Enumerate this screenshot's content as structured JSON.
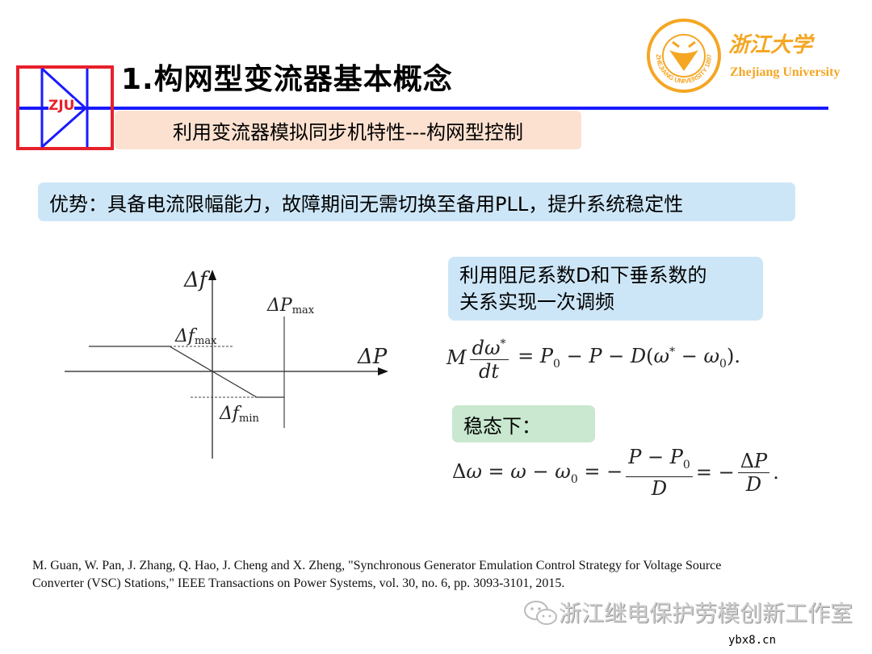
{
  "header": {
    "logo_text": "ZJU",
    "title": "1.构网型变流器基本概念",
    "subtitle": "利用变流器模拟同步机特性---构网型控制",
    "university_cn": "浙江大学",
    "university_en": "Zhejiang University",
    "university_seal_text": "ZHEJIANG UNIVERSITY 1897"
  },
  "advantage": "优势：具备电流限幅能力，故障期间无需切换至备用PLL，提升系统稳定性",
  "diagram": {
    "y_label": "Δf",
    "x_label": "ΔP",
    "fmax_label": "Δf",
    "fmax_sub": "max",
    "fmin_label": "Δf",
    "fmin_sub": "min",
    "pmax_label": "ΔP",
    "pmax_sub": "max"
  },
  "right": {
    "note_line1": "利用阻尼系数D和下垂系数的",
    "note_line2": "关系实现一次调频",
    "steady_label": "稳态下："
  },
  "reference": {
    "line1": "M. Guan, W. Pan, J. Zhang, Q. Hao, J. Cheng and X. Zheng, \"Synchronous Generator Emulation Control Strategy for Voltage Source",
    "line2": "Converter (VSC) Stations,\" IEEE Transactions on Power Systems, vol. 30, no. 6, pp. 3093-3101, 2015."
  },
  "watermark": {
    "text": "浙江继电保护劳模创新工作室",
    "site": "ybx8.cn",
    "icon": "wechat-icon"
  },
  "colors": {
    "red": "#e8202a",
    "blue": "#1a1aff",
    "orange": "#f5a623"
  }
}
